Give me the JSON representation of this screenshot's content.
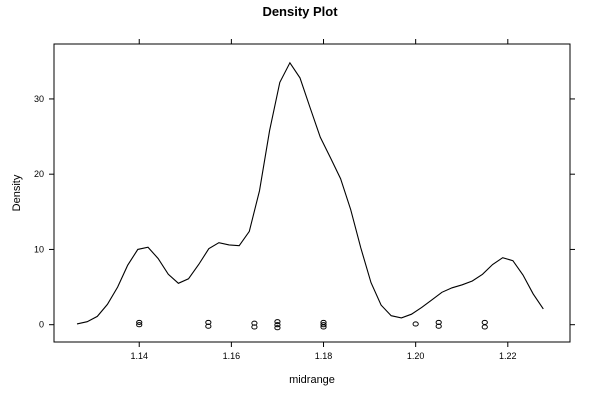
{
  "chart_data": {
    "type": "line",
    "title": "Density Plot",
    "xlabel": "midrange",
    "ylabel": "Density",
    "xlim": [
      1.1215,
      1.2335
    ],
    "ylim": [
      -2.3,
      37.3
    ],
    "x_ticks": [
      {
        "value": 1.14,
        "label": "1.14"
      },
      {
        "value": 1.16,
        "label": "1.16"
      },
      {
        "value": 1.18,
        "label": "1.18"
      },
      {
        "value": 1.2,
        "label": "1.20"
      },
      {
        "value": 1.22,
        "label": "1.22"
      }
    ],
    "y_ticks": [
      {
        "value": 0,
        "label": "0"
      },
      {
        "value": 10,
        "label": "10"
      },
      {
        "value": 20,
        "label": "20"
      },
      {
        "value": 30,
        "label": "30"
      }
    ],
    "grid": false,
    "series": [
      {
        "x": [
          1.1265,
          1.1287,
          1.1309,
          1.1331,
          1.1353,
          1.1375,
          1.1397,
          1.1419,
          1.1441,
          1.1463,
          1.1485,
          1.1507,
          1.1529,
          1.1551,
          1.1573,
          1.1595,
          1.1617,
          1.1639,
          1.1661,
          1.1683,
          1.1705,
          1.1727,
          1.1749,
          1.1771,
          1.1793,
          1.1815,
          1.1837,
          1.1859,
          1.1881,
          1.1903,
          1.1925,
          1.1947,
          1.1969,
          1.1991,
          1.2013,
          1.2035,
          1.2057,
          1.2079,
          1.2101,
          1.2123,
          1.2145,
          1.2167,
          1.2189,
          1.2211,
          1.2233,
          1.2255,
          1.2277
        ],
        "y": [
          0.1,
          0.4,
          1.1,
          2.7,
          5.0,
          7.9,
          10.0,
          10.3,
          8.8,
          6.7,
          5.5,
          6.1,
          8.0,
          10.1,
          10.9,
          10.6,
          10.5,
          12.4,
          17.8,
          25.8,
          32.2,
          34.8,
          32.8,
          28.8,
          24.9,
          22.2,
          19.4,
          15.3,
          10.2,
          5.6,
          2.6,
          1.2,
          0.9,
          1.4,
          2.3,
          3.3,
          4.3,
          4.9,
          5.3,
          5.8,
          6.7,
          8.0,
          8.9,
          8.5,
          6.6,
          4.1,
          2.1
        ]
      }
    ],
    "rug_points": [
      {
        "x": 1.14,
        "y": 0.3
      },
      {
        "x": 1.14,
        "y": 0.0
      },
      {
        "x": 1.155,
        "y": 0.3
      },
      {
        "x": 1.155,
        "y": -0.2
      },
      {
        "x": 1.165,
        "y": 0.2
      },
      {
        "x": 1.165,
        "y": -0.3
      },
      {
        "x": 1.17,
        "y": 0.4
      },
      {
        "x": 1.17,
        "y": 0.0
      },
      {
        "x": 1.17,
        "y": -0.4
      },
      {
        "x": 1.18,
        "y": 0.3
      },
      {
        "x": 1.18,
        "y": 0.0
      },
      {
        "x": 1.18,
        "y": -0.3
      },
      {
        "x": 1.2,
        "y": 0.1
      },
      {
        "x": 1.205,
        "y": 0.3
      },
      {
        "x": 1.205,
        "y": -0.2
      },
      {
        "x": 1.215,
        "y": 0.3
      },
      {
        "x": 1.215,
        "y": -0.3
      }
    ],
    "line_color": "#000000",
    "point_color": "#000000"
  }
}
